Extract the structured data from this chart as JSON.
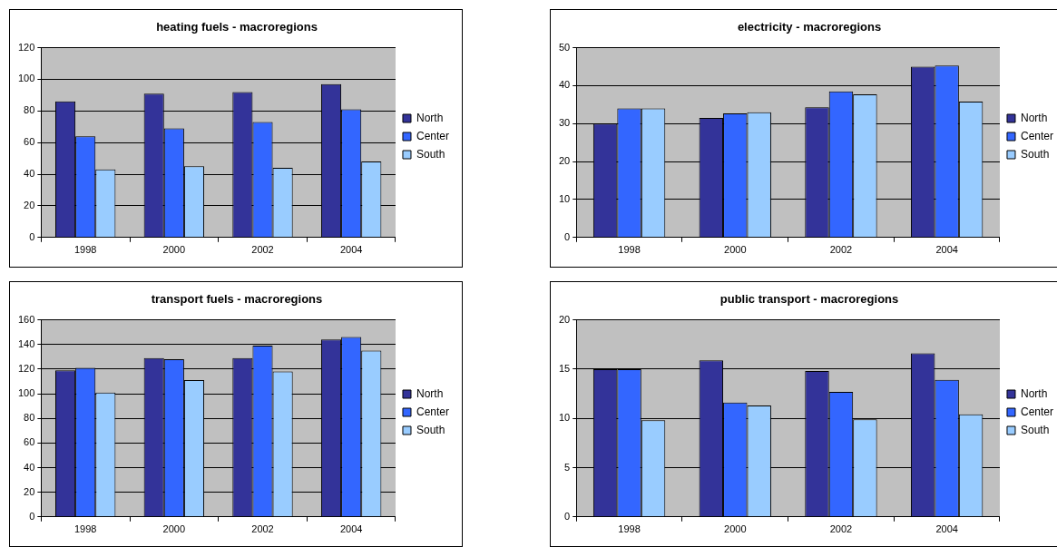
{
  "chart_data": [
    {
      "type": "bar",
      "title": "heating fuels - macroregions",
      "categories": [
        "1998",
        "2000",
        "2002",
        "2004"
      ],
      "ylim": [
        0,
        120
      ],
      "yticks": [
        0,
        20,
        40,
        60,
        80,
        100,
        120
      ],
      "grid": "y",
      "legend": "right",
      "series": [
        {
          "name": "North",
          "color": "#333399",
          "values": [
            86,
            91,
            92,
            97
          ]
        },
        {
          "name": "Center",
          "color": "#3366ff",
          "values": [
            64,
            69,
            73,
            81
          ]
        },
        {
          "name": "South",
          "color": "#99ccff",
          "values": [
            43,
            45,
            44,
            48
          ]
        }
      ]
    },
    {
      "type": "bar",
      "title": "electricity - macroregions",
      "categories": [
        "1998",
        "2000",
        "2002",
        "2004"
      ],
      "ylim": [
        0,
        50
      ],
      "yticks": [
        0,
        10,
        20,
        30,
        40,
        50
      ],
      "grid": "y",
      "legend": "right",
      "series": [
        {
          "name": "North",
          "color": "#333399",
          "values": [
            30,
            31.5,
            34.3,
            45
          ]
        },
        {
          "name": "Center",
          "color": "#3366ff",
          "values": [
            34,
            32.7,
            38.5,
            45.3
          ]
        },
        {
          "name": "South",
          "color": "#99ccff",
          "values": [
            34,
            33,
            37.7,
            35.8
          ]
        }
      ]
    },
    {
      "type": "bar",
      "title": "transport fuels - macroregions",
      "categories": [
        "1998",
        "2000",
        "2002",
        "2004"
      ],
      "ylim": [
        0,
        160
      ],
      "yticks": [
        0,
        20,
        40,
        60,
        80,
        100,
        120,
        140,
        160
      ],
      "grid": "y",
      "legend": "right",
      "series": [
        {
          "name": "North",
          "color": "#333399",
          "values": [
            119,
            129,
            129,
            144
          ]
        },
        {
          "name": "Center",
          "color": "#3366ff",
          "values": [
            121,
            128,
            139,
            146
          ]
        },
        {
          "name": "South",
          "color": "#99ccff",
          "values": [
            101,
            111,
            118,
            135
          ]
        }
      ]
    },
    {
      "type": "bar",
      "title": "public transport - macroregions",
      "categories": [
        "1998",
        "2000",
        "2002",
        "2004"
      ],
      "ylim": [
        0,
        20
      ],
      "yticks": [
        0,
        5,
        10,
        15,
        20
      ],
      "grid": "y",
      "legend": "right",
      "series": [
        {
          "name": "North",
          "color": "#333399",
          "values": [
            15,
            15.9,
            14.8,
            16.6
          ]
        },
        {
          "name": "Center",
          "color": "#3366ff",
          "values": [
            15,
            11.6,
            12.7,
            13.9
          ]
        },
        {
          "name": "South",
          "color": "#99ccff",
          "values": [
            9.8,
            11.3,
            9.9,
            10.4
          ]
        }
      ]
    }
  ]
}
